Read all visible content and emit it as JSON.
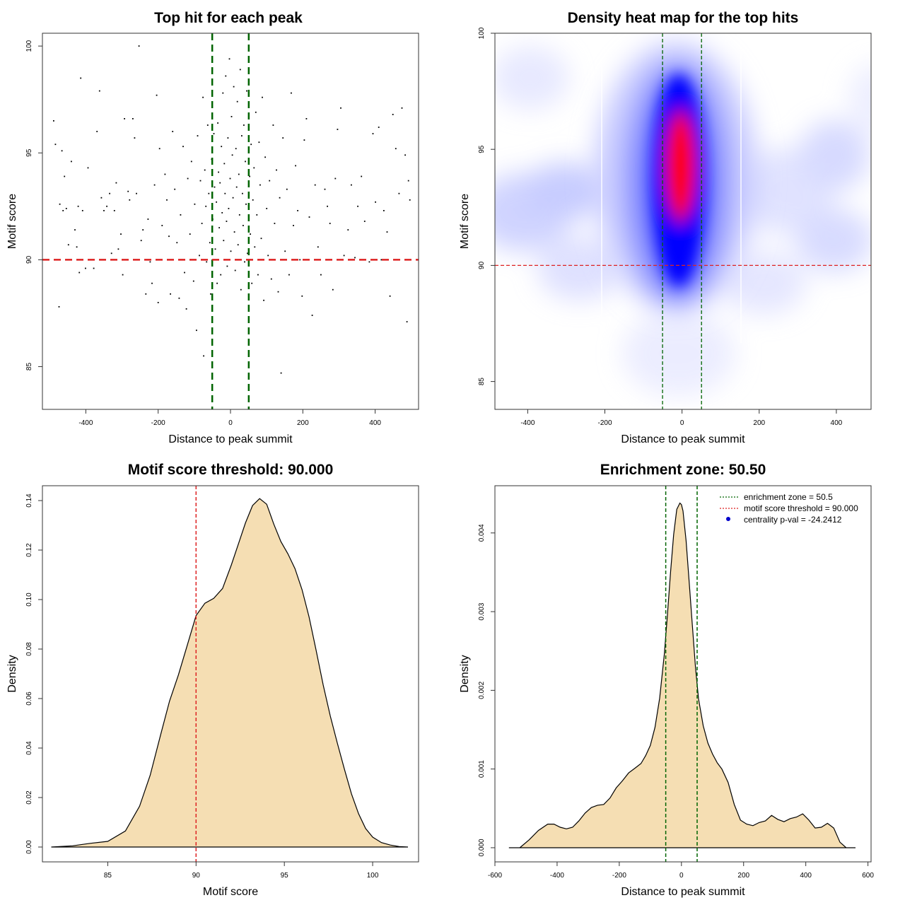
{
  "chart_data": [
    {
      "type": "scatter",
      "title": "Top hit for each peak",
      "xlabel": "Distance to peak summit",
      "ylabel": "Motif score",
      "xlim": [
        -520,
        520
      ],
      "ylim": [
        83,
        100.6
      ],
      "xticks": [
        "-400",
        "-200",
        "0",
        "200",
        "400"
      ],
      "yticks": [
        "85",
        "90",
        "95",
        "100"
      ],
      "hlines": [
        {
          "value": 90,
          "color": "#dd2222"
        }
      ],
      "vlines": [
        {
          "value": -50.5,
          "color": "#006400"
        },
        {
          "value": 50.5,
          "color": "#006400"
        }
      ],
      "points_note": "",
      "points": [
        [
          -489,
          96.5
        ],
        [
          -484,
          95.4
        ],
        [
          -474,
          87.8
        ],
        [
          -472,
          92.6
        ],
        [
          -466,
          95.1
        ],
        [
          -463,
          92.3
        ],
        [
          -459,
          93.9
        ],
        [
          -454,
          92.4
        ],
        [
          -448,
          90.7
        ],
        [
          -440,
          94.6
        ],
        [
          -430,
          91.4
        ],
        [
          -425,
          90.6
        ],
        [
          -421,
          92.5
        ],
        [
          -418,
          89.4
        ],
        [
          -414,
          98.5
        ],
        [
          -409,
          92.3
        ],
        [
          -401,
          89.6
        ],
        [
          -394,
          94.3
        ],
        [
          -378,
          89.6
        ],
        [
          -369,
          96.0
        ],
        [
          -362,
          97.9
        ],
        [
          -357,
          92.9
        ],
        [
          -350,
          92.3
        ],
        [
          -342,
          92.5
        ],
        [
          -334,
          93.1
        ],
        [
          -329,
          90.3
        ],
        [
          -321,
          92.3
        ],
        [
          -316,
          93.6
        ],
        [
          -310,
          90.5
        ],
        [
          -303,
          91.2
        ],
        [
          -298,
          89.3
        ],
        [
          -293,
          96.6
        ],
        [
          -283,
          93.2
        ],
        [
          -279,
          92.8
        ],
        [
          -270,
          96.6
        ],
        [
          -265,
          95.7
        ],
        [
          -260,
          93.1
        ],
        [
          -253,
          100.0
        ],
        [
          -247,
          90.9
        ],
        [
          -242,
          91.4
        ],
        [
          -234,
          88.4
        ],
        [
          -228,
          91.9
        ],
        [
          -222,
          89.9
        ],
        [
          -217,
          88.9
        ],
        [
          -210,
          93.5
        ],
        [
          -204,
          97.7
        ],
        [
          -200,
          88.0
        ],
        [
          -196,
          95.2
        ],
        [
          -189,
          91.6
        ],
        [
          -181,
          94.0
        ],
        [
          -176,
          92.8
        ],
        [
          -170,
          91.1
        ],
        [
          -166,
          88.4
        ],
        [
          -160,
          96.0
        ],
        [
          -154,
          93.3
        ],
        [
          -148,
          90.8
        ],
        [
          -142,
          88.2
        ],
        [
          -138,
          92.1
        ],
        [
          -131,
          95.3
        ],
        [
          -127,
          89.4
        ],
        [
          -122,
          87.7
        ],
        [
          -118,
          93.8
        ],
        [
          -112,
          91.2
        ],
        [
          -108,
          94.6
        ],
        [
          -102,
          89.0
        ],
        [
          -99,
          92.6
        ],
        [
          -94,
          86.7
        ],
        [
          -91,
          95.8
        ],
        [
          -86,
          90.2
        ],
        [
          -83,
          93.7
        ],
        [
          -79,
          91.7
        ],
        [
          -76,
          97.6
        ],
        [
          -74,
          85.5
        ],
        [
          -71,
          94.2
        ],
        [
          -68,
          92.5
        ],
        [
          -66,
          89.9
        ],
        [
          -63,
          96.3
        ],
        [
          -60,
          93.1
        ],
        [
          -57,
          90.8
        ],
        [
          -55,
          88.4
        ],
        [
          -52,
          94.7
        ],
        [
          -49,
          91.9
        ],
        [
          -46,
          95.9
        ],
        [
          -44,
          93.4
        ],
        [
          -42,
          90.5
        ],
        [
          -39,
          92.7
        ],
        [
          -37,
          88.9
        ],
        [
          -35,
          96.4
        ],
        [
          -33,
          94.1
        ],
        [
          -31,
          91.5
        ],
        [
          -29,
          93.6
        ],
        [
          -27,
          89.3
        ],
        [
          -25,
          95.3
        ],
        [
          -23,
          92.2
        ],
        [
          -21,
          97.8
        ],
        [
          -19,
          90.9
        ],
        [
          -17,
          94.5
        ],
        [
          -15,
          93.1
        ],
        [
          -13,
          98.6
        ],
        [
          -11,
          91.8
        ],
        [
          -9,
          89.7
        ],
        [
          -7,
          95.7
        ],
        [
          -5,
          92.4
        ],
        [
          -3,
          99.4
        ],
        [
          -1,
          93.8
        ],
        [
          1,
          90.4
        ],
        [
          3,
          96.7
        ],
        [
          5,
          94.9
        ],
        [
          7,
          92.9
        ],
        [
          9,
          98.1
        ],
        [
          11,
          91.3
        ],
        [
          13,
          89.5
        ],
        [
          15,
          95.2
        ],
        [
          17,
          93.4
        ],
        [
          19,
          97.4
        ],
        [
          21,
          90.7
        ],
        [
          23,
          94.0
        ],
        [
          25,
          92.1
        ],
        [
          27,
          98.9
        ],
        [
          29,
          88.6
        ],
        [
          31,
          95.8
        ],
        [
          33,
          93.1
        ],
        [
          35,
          91.6
        ],
        [
          37,
          96.3
        ],
        [
          39,
          89.9
        ],
        [
          41,
          94.6
        ],
        [
          43,
          92.6
        ],
        [
          45,
          97.9
        ],
        [
          47,
          90.3
        ],
        [
          53,
          93.9
        ],
        [
          55,
          91.2
        ],
        [
          57,
          95.4
        ],
        [
          59,
          88.9
        ],
        [
          62,
          92.8
        ],
        [
          65,
          94.3
        ],
        [
          67,
          90.6
        ],
        [
          70,
          96.9
        ],
        [
          73,
          92.1
        ],
        [
          76,
          89.3
        ],
        [
          79,
          95.5
        ],
        [
          82,
          93.5
        ],
        [
          85,
          91.0
        ],
        [
          88,
          97.6
        ],
        [
          92,
          88.1
        ],
        [
          96,
          94.8
        ],
        [
          100,
          92.4
        ],
        [
          104,
          90.2
        ],
        [
          108,
          93.7
        ],
        [
          113,
          89.1
        ],
        [
          118,
          96.3
        ],
        [
          122,
          91.7
        ],
        [
          127,
          94.2
        ],
        [
          132,
          88.5
        ],
        [
          136,
          92.9
        ],
        [
          140,
          84.7
        ],
        [
          145,
          95.7
        ],
        [
          151,
          90.4
        ],
        [
          156,
          93.3
        ],
        [
          162,
          89.3
        ],
        [
          168,
          97.8
        ],
        [
          174,
          91.6
        ],
        [
          180,
          94.4
        ],
        [
          186,
          92.3
        ],
        [
          192,
          90.0
        ],
        [
          198,
          88.3
        ],
        [
          204,
          95.6
        ],
        [
          210,
          96.6
        ],
        [
          218,
          92.0
        ],
        [
          226,
          87.4
        ],
        [
          234,
          93.5
        ],
        [
          242,
          90.6
        ],
        [
          250,
          89.3
        ],
        [
          261,
          93.3
        ],
        [
          268,
          92.5
        ],
        [
          275,
          91.7
        ],
        [
          283,
          88.6
        ],
        [
          290,
          93.8
        ],
        [
          296,
          96.1
        ],
        [
          305,
          97.1
        ],
        [
          314,
          90.2
        ],
        [
          325,
          91.4
        ],
        [
          334,
          93.5
        ],
        [
          344,
          90.1
        ],
        [
          352,
          92.5
        ],
        [
          362,
          93.9
        ],
        [
          371,
          91.8
        ],
        [
          384,
          89.9
        ],
        [
          394,
          95.9
        ],
        [
          401,
          92.7
        ],
        [
          410,
          96.2
        ],
        [
          417,
          90.0
        ],
        [
          424,
          92.3
        ],
        [
          433,
          91.3
        ],
        [
          441,
          88.3
        ],
        [
          449,
          96.8
        ],
        [
          457,
          95.2
        ],
        [
          466,
          93.1
        ],
        [
          474,
          97.1
        ],
        [
          483,
          94.9
        ],
        [
          488,
          87.1
        ],
        [
          492,
          93.7
        ],
        [
          496,
          92.8
        ]
      ]
    },
    {
      "type": "heatmap",
      "title": "Density heat map for the top hits",
      "xlabel": "Distance to peak summit",
      "ylabel": "Motif score",
      "xlim": [
        -485,
        490
      ],
      "ylim": [
        83.8,
        100
      ],
      "xticks": [
        "-400",
        "-200",
        "0",
        "200",
        "400"
      ],
      "yticks": [
        "85",
        "90",
        "95",
        "100"
      ],
      "colors": [
        "#ffffff",
        "#0000ff",
        "#ff0000"
      ],
      "hlines": [
        {
          "value": 90,
          "color": "#dd2222"
        }
      ],
      "vlines": [
        {
          "value": -50.5,
          "color": "#006400"
        },
        {
          "value": 50.5,
          "color": "#006400"
        }
      ],
      "density_peak": {
        "x": 2,
        "y": 94.2
      }
    },
    {
      "type": "area",
      "title": "Motif score threshold: 90.000",
      "xlabel": "Motif score",
      "ylabel": "Density",
      "xlim": [
        81.3,
        102.6
      ],
      "ylim": [
        -0.006,
        0.146
      ],
      "xticks": [
        "85",
        "90",
        "95",
        "100"
      ],
      "yticks": [
        "0.00",
        "0.02",
        "0.04",
        "0.06",
        "0.08",
        "0.10",
        "0.12",
        "0.14"
      ],
      "fill": "#f5deb3",
      "vlines": [
        {
          "value": 90,
          "color": "#dd2222"
        }
      ],
      "x": [
        81.8,
        83.0,
        84.0,
        85.0,
        86.0,
        86.8,
        87.4,
        88.0,
        88.5,
        89.0,
        89.5,
        90.0,
        90.5,
        91.0,
        91.5,
        92.0,
        92.4,
        92.8,
        93.2,
        93.6,
        94.0,
        94.4,
        94.8,
        95.2,
        95.6,
        96.0,
        96.4,
        96.8,
        97.2,
        97.6,
        98.0,
        98.4,
        98.8,
        99.2,
        99.6,
        100.0,
        100.5,
        101.0,
        101.5,
        102.0
      ],
      "y": [
        0.0,
        0.0005,
        0.0015,
        0.0023,
        0.0065,
        0.0165,
        0.029,
        0.0455,
        0.059,
        0.0695,
        0.0815,
        0.0935,
        0.0985,
        0.1005,
        0.1045,
        0.114,
        0.1225,
        0.131,
        0.138,
        0.1408,
        0.1385,
        0.1305,
        0.1235,
        0.1185,
        0.1125,
        0.104,
        0.093,
        0.0795,
        0.0655,
        0.053,
        0.042,
        0.0315,
        0.0215,
        0.0135,
        0.0075,
        0.004,
        0.0018,
        0.0008,
        0.0002,
        0.0
      ]
    },
    {
      "type": "area",
      "title": "Enrichment zone: 50.50",
      "xlabel": "Distance to peak summit",
      "ylabel": "Density",
      "xlim": [
        -600,
        610
      ],
      "ylim": [
        -0.00018,
        0.0046
      ],
      "xticks": [
        "-600",
        "-400",
        "-200",
        "0",
        "200",
        "400",
        "600"
      ],
      "yticks": [
        "0.000",
        "0.001",
        "0.002",
        "0.003",
        "0.004"
      ],
      "fill": "#f5deb3",
      "vlines": [
        {
          "value": -50.5,
          "color": "#006400"
        },
        {
          "value": 50.5,
          "color": "#006400"
        }
      ],
      "x": [
        -555,
        -520,
        -490,
        -460,
        -430,
        -410,
        -390,
        -370,
        -350,
        -330,
        -310,
        -290,
        -270,
        -250,
        -230,
        -210,
        -190,
        -170,
        -150,
        -130,
        -115,
        -100,
        -85,
        -70,
        -55,
        -45,
        -35,
        -25,
        -15,
        -5,
        0,
        5,
        15,
        25,
        35,
        45,
        55,
        70,
        85,
        100,
        115,
        130,
        150,
        170,
        190,
        210,
        230,
        250,
        270,
        290,
        310,
        330,
        350,
        370,
        390,
        410,
        430,
        450,
        470,
        490,
        510,
        530,
        560
      ],
      "y": [
        0.0,
        0.0,
        0.0001,
        0.00022,
        0.0003,
        0.0003,
        0.00026,
        0.00024,
        0.00026,
        0.00034,
        0.00044,
        0.00051,
        0.00054,
        0.00055,
        0.00063,
        0.00076,
        0.00085,
        0.00095,
        0.00101,
        0.00107,
        0.00117,
        0.0013,
        0.00153,
        0.0019,
        0.00246,
        0.00296,
        0.0035,
        0.00398,
        0.0043,
        0.00438,
        0.00436,
        0.00428,
        0.0039,
        0.00337,
        0.00283,
        0.0023,
        0.00189,
        0.00155,
        0.00133,
        0.00119,
        0.00108,
        0.001,
        0.00083,
        0.00055,
        0.00035,
        0.0003,
        0.00028,
        0.00032,
        0.00034,
        0.00041,
        0.00036,
        0.00033,
        0.00037,
        0.00039,
        0.00043,
        0.00035,
        0.00025,
        0.00026,
        0.00031,
        0.00025,
        7e-05,
        0.0,
        0.0
      ],
      "legend": {
        "placement": "top-right",
        "items": [
          {
            "label": "enrichment zone = 50.5",
            "color": "#006400",
            "style": "dotted"
          },
          {
            "label": "motif score threshold = 90.000",
            "color": "#dd2222",
            "style": "dotted"
          },
          {
            "label": "centrality p-val = -24.2412",
            "color": "#0000cc",
            "style": "point"
          }
        ]
      }
    }
  ]
}
